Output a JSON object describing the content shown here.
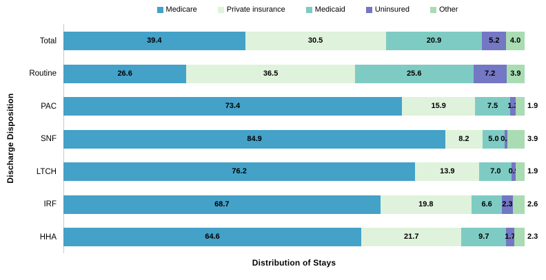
{
  "chart_data": {
    "type": "bar",
    "variant": "100%-stacked-horizontal",
    "title": "",
    "xlabel": "Distribution of Stays",
    "ylabel": "Discharge Disposition",
    "legend_position": "top",
    "grid": false,
    "xlim": [
      0,
      100
    ],
    "value_decimals": 1,
    "axis_line_color": "#c3c7ca",
    "series": [
      {
        "name": "Medicare",
        "color": "#44a1c8"
      },
      {
        "name": "Private insurance",
        "color": "#dff2db"
      },
      {
        "name": "Medicaid",
        "color": "#7ecbc3"
      },
      {
        "name": "Uninsured",
        "color": "#7477c4"
      },
      {
        "name": "Other",
        "color": "#a9dcb2"
      }
    ],
    "categories": [
      "Total",
      "Routine",
      "PAC",
      "SNF",
      "LTCH",
      "IRF",
      "HHA"
    ],
    "rows": [
      {
        "category": "Total",
        "values": [
          39.4,
          30.5,
          20.9,
          5.2,
          4.0
        ],
        "last_label_outside": false
      },
      {
        "category": "Routine",
        "values": [
          26.6,
          36.5,
          25.6,
          7.2,
          3.9
        ],
        "last_label_outside": false
      },
      {
        "category": "PAC",
        "values": [
          73.4,
          15.9,
          7.5,
          1.3,
          1.9
        ],
        "last_label_outside": true
      },
      {
        "category": "SNF",
        "values": [
          84.9,
          8.2,
          5.0,
          0.5,
          3.9
        ],
        "last_label_outside": true
      },
      {
        "category": "LTCH",
        "values": [
          76.2,
          13.9,
          7.0,
          0.9,
          1.9
        ],
        "last_label_outside": true
      },
      {
        "category": "IRF",
        "values": [
          68.7,
          19.8,
          6.6,
          2.3,
          2.6
        ],
        "last_label_outside": true
      },
      {
        "category": "HHA",
        "values": [
          64.6,
          21.7,
          9.7,
          1.7,
          2.3
        ],
        "last_label_outside": true
      }
    ]
  }
}
